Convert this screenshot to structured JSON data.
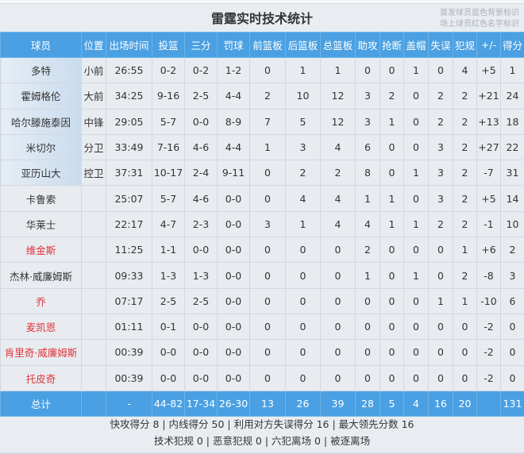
{
  "title": "雷霆实时技术统计",
  "legend": [
    "首发球员蓝色背景标识",
    "场上球员红色名字标识"
  ],
  "colors": {
    "header": "#4aa0e2",
    "starter_bg": "#c9dcee",
    "oncourt_name": "#e0343b",
    "row_bg": "#e8ecf0"
  },
  "columns": [
    "球员",
    "位置",
    "出场时间",
    "投篮",
    "三分",
    "罚球",
    "前篮板",
    "后篮板",
    "总篮板",
    "助攻",
    "抢断",
    "盖帽",
    "失误",
    "犯规",
    "+/-",
    "得分"
  ],
  "players": [
    {
      "cells": [
        "多特",
        "小前",
        "26:55",
        "0-2",
        "0-2",
        "1-2",
        "0",
        "1",
        "1",
        "0",
        "0",
        "1",
        "0",
        "4",
        "+5",
        "1"
      ],
      "starter": true,
      "on_court": false
    },
    {
      "cells": [
        "霍姆格伦",
        "大前",
        "34:25",
        "9-16",
        "2-5",
        "4-4",
        "2",
        "10",
        "12",
        "3",
        "2",
        "0",
        "2",
        "2",
        "+21",
        "24"
      ],
      "starter": true,
      "on_court": false
    },
    {
      "cells": [
        "哈尔滕施泰因",
        "中锋",
        "29:05",
        "5-7",
        "0-0",
        "8-9",
        "7",
        "5",
        "12",
        "3",
        "1",
        "0",
        "2",
        "2",
        "+13",
        "18"
      ],
      "starter": true,
      "on_court": false
    },
    {
      "cells": [
        "米切尔",
        "分卫",
        "33:49",
        "7-16",
        "4-6",
        "4-4",
        "1",
        "3",
        "4",
        "6",
        "0",
        "0",
        "3",
        "2",
        "+27",
        "22"
      ],
      "starter": true,
      "on_court": false
    },
    {
      "cells": [
        "亚历山大",
        "控卫",
        "37:31",
        "10-17",
        "2-4",
        "9-11",
        "0",
        "2",
        "2",
        "8",
        "0",
        "1",
        "3",
        "2",
        "-7",
        "31"
      ],
      "starter": true,
      "on_court": false
    },
    {
      "cells": [
        "卡鲁索",
        "",
        "25:07",
        "5-7",
        "4-6",
        "0-0",
        "0",
        "4",
        "4",
        "1",
        "1",
        "0",
        "3",
        "2",
        "+5",
        "14"
      ],
      "starter": false,
      "on_court": false
    },
    {
      "cells": [
        "华莱士",
        "",
        "22:17",
        "4-7",
        "2-3",
        "0-0",
        "3",
        "1",
        "4",
        "4",
        "1",
        "1",
        "2",
        "2",
        "-1",
        "10"
      ],
      "starter": false,
      "on_court": false
    },
    {
      "cells": [
        "维金斯",
        "",
        "11:25",
        "1-1",
        "0-0",
        "0-0",
        "0",
        "0",
        "0",
        "2",
        "0",
        "0",
        "0",
        "1",
        "+6",
        "2"
      ],
      "starter": false,
      "on_court": true
    },
    {
      "cells": [
        "杰林·威廉姆斯",
        "",
        "09:33",
        "1-3",
        "1-3",
        "0-0",
        "0",
        "0",
        "0",
        "1",
        "0",
        "1",
        "0",
        "2",
        "-8",
        "3"
      ],
      "starter": false,
      "on_court": false
    },
    {
      "cells": [
        "乔",
        "",
        "07:17",
        "2-5",
        "2-5",
        "0-0",
        "0",
        "0",
        "0",
        "0",
        "0",
        "0",
        "1",
        "1",
        "-10",
        "6"
      ],
      "starter": false,
      "on_court": true
    },
    {
      "cells": [
        "麦凯恩",
        "",
        "01:11",
        "0-1",
        "0-0",
        "0-0",
        "0",
        "0",
        "0",
        "0",
        "0",
        "0",
        "0",
        "0",
        "-2",
        "0"
      ],
      "starter": false,
      "on_court": true
    },
    {
      "cells": [
        "肯里奇·威廉姆斯",
        "",
        "00:39",
        "0-0",
        "0-0",
        "0-0",
        "0",
        "0",
        "0",
        "0",
        "0",
        "0",
        "0",
        "0",
        "-2",
        "0"
      ],
      "starter": false,
      "on_court": true
    },
    {
      "cells": [
        "托皮奇",
        "",
        "00:39",
        "0-0",
        "0-0",
        "0-0",
        "0",
        "0",
        "0",
        "0",
        "0",
        "0",
        "0",
        "0",
        "-2",
        "0"
      ],
      "starter": false,
      "on_court": true
    }
  ],
  "total": [
    "总计",
    "",
    "-",
    "44-82",
    "17-34",
    "26-30",
    "13",
    "26",
    "39",
    "28",
    "5",
    "4",
    "16",
    "20",
    "",
    "131"
  ],
  "footer": [
    "快攻得分 8 | 内线得分 50 | 利用对方失误得分 16 | 最大领先分数 16",
    "技术犯规 0 | 恶意犯规 0 | 六犯离场 0 | 被逐离场"
  ]
}
